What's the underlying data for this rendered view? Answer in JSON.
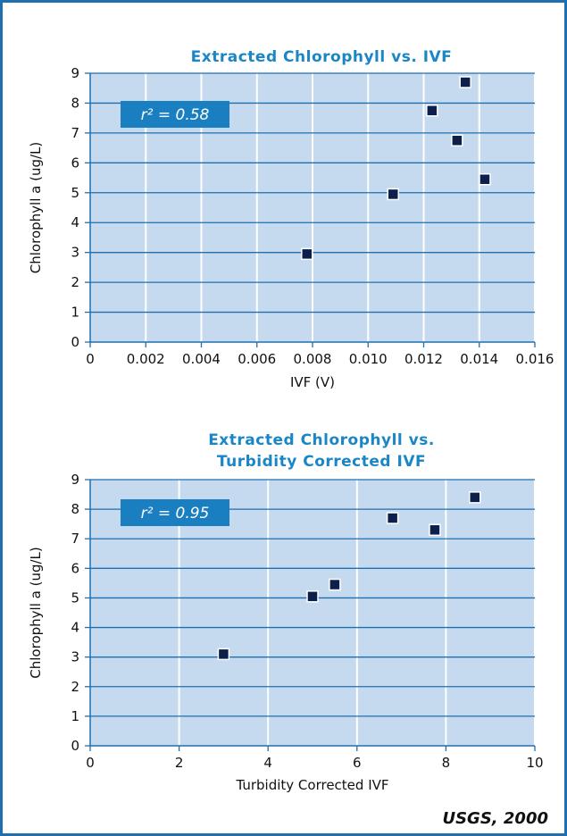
{
  "source": "USGS, 2000",
  "colors": {
    "frame": "#1f6fb0",
    "plot_bg": "#c5daee",
    "title": "#1a86c6",
    "marker": "#0c1f4d",
    "r2_box": "#1a7fc0"
  },
  "chart_data": [
    {
      "type": "scatter",
      "title_lines": [
        "Extracted Chlorophyll vs. IVF"
      ],
      "xlabel": "IVF (V)",
      "ylabel": "Chlorophyll a (ug/L)",
      "xlim": [
        0,
        0.016
      ],
      "ylim": [
        0,
        9
      ],
      "xticks": [
        0,
        0.002,
        0.004,
        0.006,
        0.008,
        0.01,
        0.012,
        0.014,
        0.016
      ],
      "xtick_labels": [
        "0",
        "0.002",
        "0.004",
        "0.006",
        "0.008",
        "0.010",
        "0.012",
        "0.014",
        "0.016"
      ],
      "yticks": [
        0,
        1,
        2,
        3,
        4,
        5,
        6,
        7,
        8,
        9
      ],
      "grid": "vertical-white-horizontal-blue",
      "r2_label": "r² = 0.58",
      "points": [
        {
          "x": 0.0078,
          "y": 2.95
        },
        {
          "x": 0.0109,
          "y": 4.95
        },
        {
          "x": 0.0123,
          "y": 7.75
        },
        {
          "x": 0.0132,
          "y": 6.75
        },
        {
          "x": 0.0135,
          "y": 8.7
        },
        {
          "x": 0.0142,
          "y": 5.45
        }
      ]
    },
    {
      "type": "scatter",
      "title_lines": [
        "Extracted Chlorophyll vs.",
        "Turbidity Corrected IVF"
      ],
      "xlabel": "Turbidity Corrected IVF",
      "ylabel": "Chlorophyll a (ug/L)",
      "xlim": [
        0,
        10
      ],
      "ylim": [
        0,
        9
      ],
      "xticks": [
        0,
        2,
        4,
        6,
        8,
        10
      ],
      "xtick_labels": [
        "0",
        "2",
        "4",
        "6",
        "8",
        "10"
      ],
      "yticks": [
        0,
        1,
        2,
        3,
        4,
        5,
        6,
        7,
        8,
        9
      ],
      "grid": "vertical-white-horizontal-blue",
      "r2_label": "r² = 0.95",
      "points": [
        {
          "x": 3.0,
          "y": 3.1
        },
        {
          "x": 5.0,
          "y": 5.05
        },
        {
          "x": 5.5,
          "y": 5.45
        },
        {
          "x": 6.8,
          "y": 7.7
        },
        {
          "x": 7.75,
          "y": 7.3
        },
        {
          "x": 8.65,
          "y": 8.4
        }
      ]
    }
  ]
}
